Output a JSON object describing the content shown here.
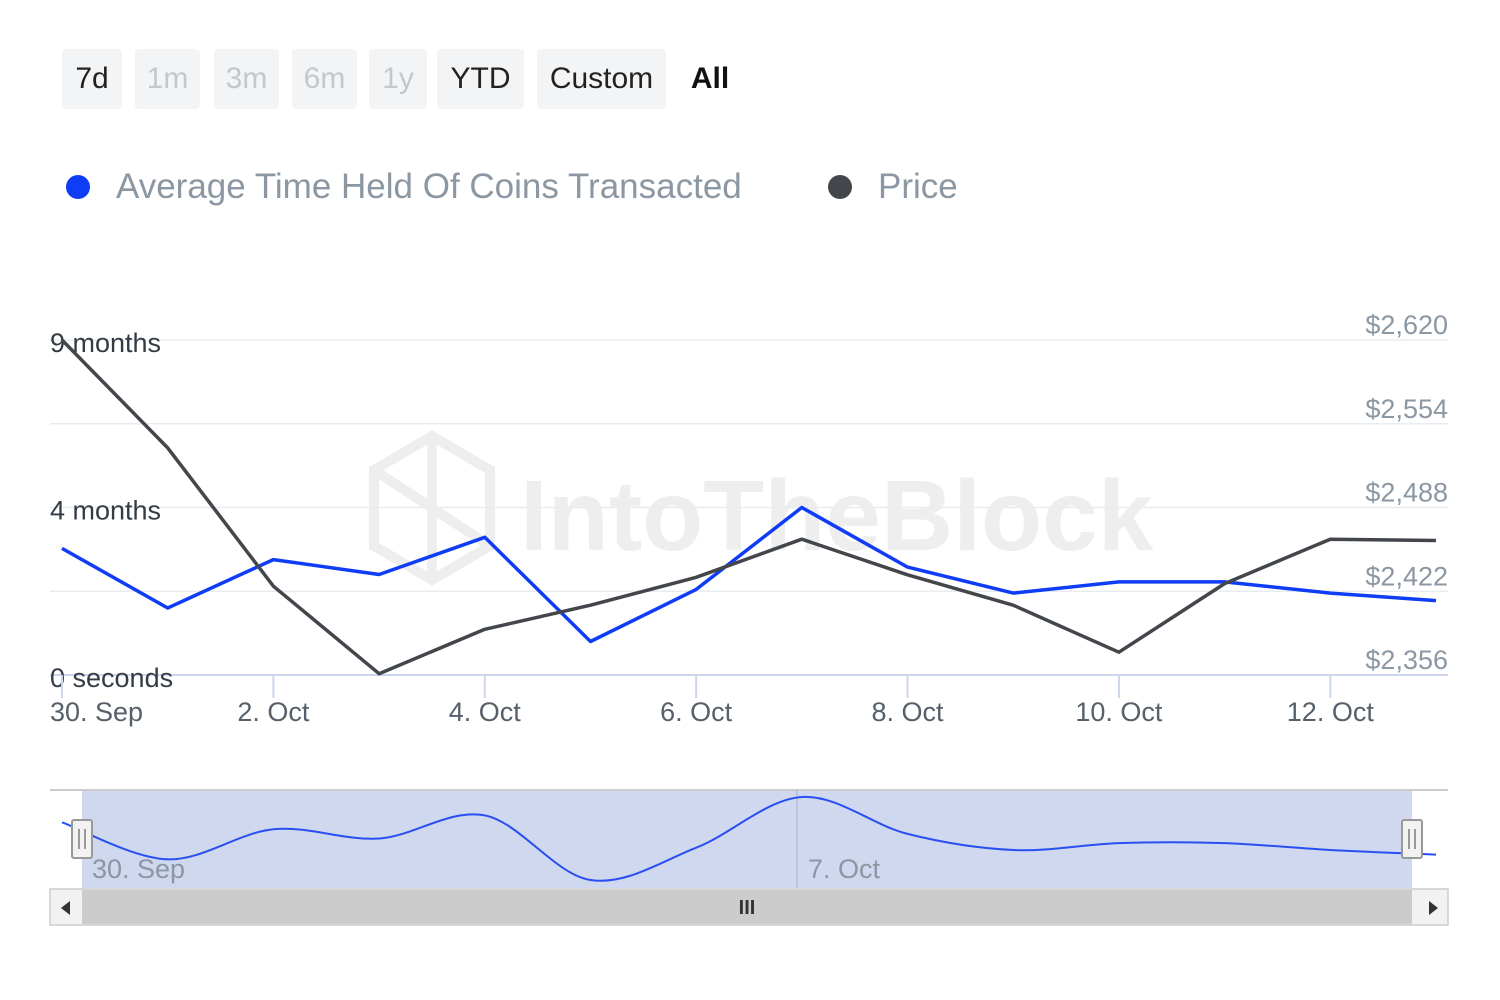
{
  "range_selector": {
    "buttons": [
      {
        "label": "7d",
        "state": "enabled"
      },
      {
        "label": "1m",
        "state": "disabled"
      },
      {
        "label": "3m",
        "state": "disabled"
      },
      {
        "label": "6m",
        "state": "disabled"
      },
      {
        "label": "1y",
        "state": "disabled"
      },
      {
        "label": "YTD",
        "state": "enabled"
      },
      {
        "label": "Custom",
        "state": "enabled"
      },
      {
        "label": "All",
        "state": "active"
      }
    ]
  },
  "watermark": "IntoTheBlock",
  "navigator": {
    "labels": [
      "30. Sep",
      "7. Oct"
    ],
    "scroll_grip": "III"
  },
  "chart_data": {
    "type": "line",
    "x": [
      "2024-09-30",
      "2024-10-01",
      "2024-10-02",
      "2024-10-03",
      "2024-10-04",
      "2024-10-05",
      "2024-10-06",
      "2024-10-07",
      "2024-10-08",
      "2024-10-09",
      "2024-10-10",
      "2024-10-11",
      "2024-10-12",
      "2024-10-13"
    ],
    "x_ticks": [
      "30. Sep",
      "2. Oct",
      "4. Oct",
      "6. Oct",
      "8. Oct",
      "10. Oct",
      "12. Oct"
    ],
    "y_left": {
      "ticks": [
        "0 seconds",
        "4 months",
        "9 months"
      ],
      "tick_values_months": [
        0,
        4.5,
        9
      ],
      "range_months": [
        0,
        9
      ]
    },
    "y_right": {
      "ticks": [
        "$2,356",
        "$2,422",
        "$2,488",
        "$2,554",
        "$2,620"
      ],
      "tick_values": [
        2356,
        2422,
        2488,
        2554,
        2620
      ],
      "range": [
        2356,
        2620
      ]
    },
    "legend_position": "top-left",
    "grid": true,
    "series": [
      {
        "name": "Average Time Held Of Coins Transacted",
        "color": "#0f3cf5",
        "axis": "left",
        "unit": "months",
        "values": [
          3.4,
          1.8,
          3.1,
          2.7,
          3.7,
          0.9,
          2.3,
          4.5,
          2.9,
          2.2,
          2.5,
          2.5,
          2.2,
          2.0
        ]
      },
      {
        "name": "Price",
        "color": "#43474c",
        "axis": "right",
        "unit": "USD",
        "values": [
          2620,
          2535,
          2426,
          2357,
          2392,
          2411,
          2433,
          2463,
          2435,
          2411,
          2374,
          2428,
          2463,
          2462
        ]
      }
    ]
  }
}
